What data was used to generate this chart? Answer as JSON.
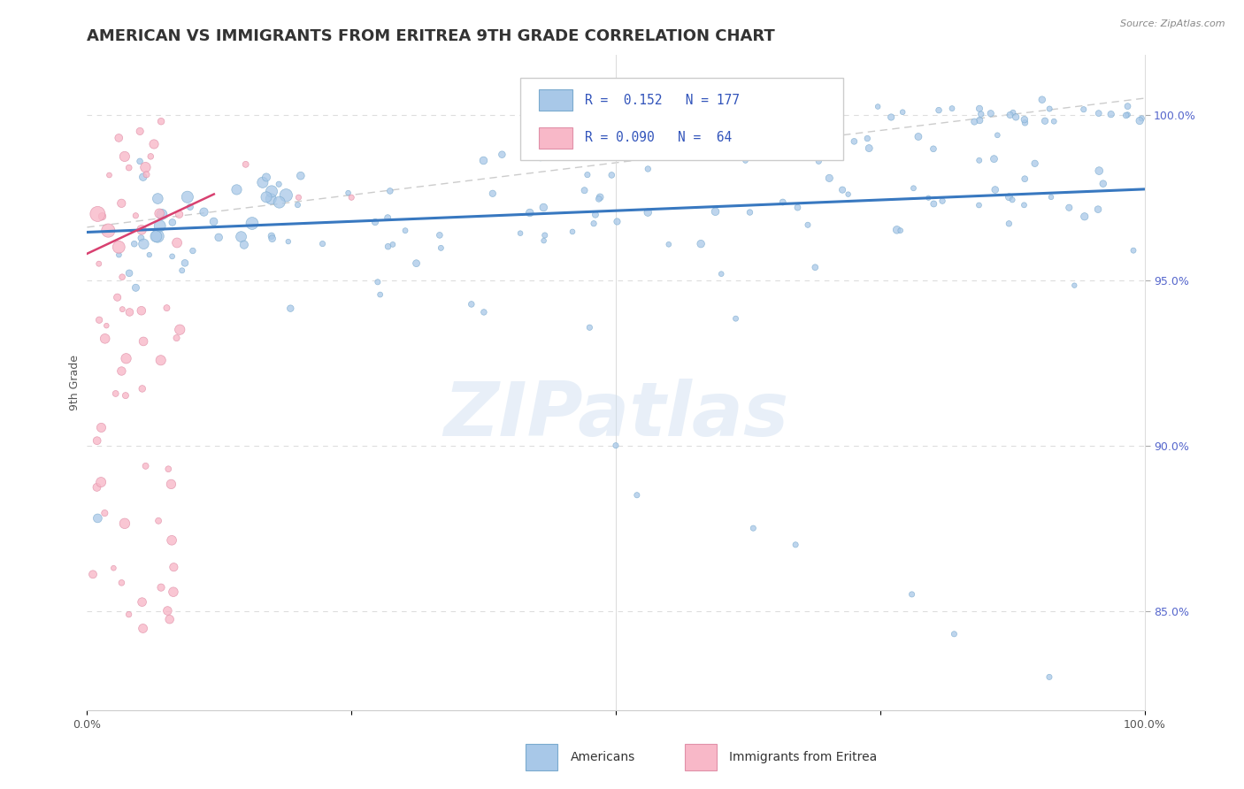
{
  "title": "AMERICAN VS IMMIGRANTS FROM ERITREA 9TH GRADE CORRELATION CHART",
  "source": "Source: ZipAtlas.com",
  "ylabel": "9th Grade",
  "legend_r_blue": "0.152",
  "legend_n_blue": "177",
  "legend_r_pink": "0.090",
  "legend_n_pink": "64",
  "legend_label_blue": "Americans",
  "legend_label_pink": "Immigrants from Eritrea",
  "blue_color": "#a8c8e8",
  "blue_edge_color": "#7aaace",
  "pink_color": "#f8b8c8",
  "pink_edge_color": "#e090a8",
  "trend_blue_color": "#3878c0",
  "trend_pink_color": "#d84070",
  "ref_line_color": "#cccccc",
  "background_color": "#ffffff",
  "xlim": [
    0.0,
    1.0
  ],
  "ylim": [
    0.82,
    1.018
  ],
  "right_yticks": [
    0.85,
    0.9,
    0.95,
    1.0
  ],
  "right_yticklabels": [
    "85.0%",
    "90.0%",
    "95.0%",
    "100.0%"
  ],
  "title_fontsize": 13,
  "axis_label_fontsize": 9,
  "tick_fontsize": 9,
  "watermark_text": "ZIPatlas",
  "blue_trend_x": [
    0.0,
    1.0
  ],
  "blue_trend_y": [
    0.9645,
    0.9775
  ],
  "pink_trend_x": [
    0.0,
    0.12
  ],
  "pink_trend_y": [
    0.958,
    0.976
  ],
  "ref_line_x": [
    0.0,
    1.0
  ],
  "ref_line_y": [
    0.966,
    1.005
  ]
}
